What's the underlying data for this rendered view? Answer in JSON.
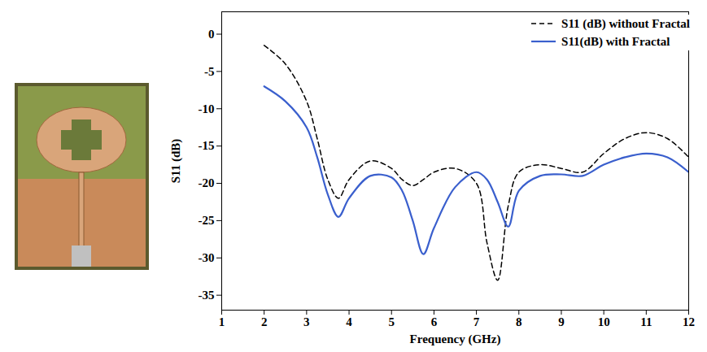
{
  "chart_data": {
    "type": "line",
    "xlabel": "Frequency (GHz)",
    "ylabel": "S11 (dB)",
    "x": [
      2,
      2.5,
      3,
      3.25,
      3.5,
      3.75,
      4,
      4.5,
      5,
      5.25,
      5.5,
      5.75,
      6,
      6.5,
      7,
      7.25,
      7.5,
      7.75,
      8,
      8.5,
      9,
      9.5,
      10,
      10.5,
      11,
      11.5,
      12
    ],
    "series": [
      {
        "name": "S11 (dB) without Fractal",
        "color": "#000000",
        "line_style": "dashed",
        "values": [
          -1.5,
          -4,
          -9,
          -14,
          -19.5,
          -22,
          -19.5,
          -17,
          -18,
          -19.5,
          -20.3,
          -19.5,
          -18.5,
          -18,
          -20,
          -28,
          -33,
          -23,
          -18.5,
          -17.5,
          -18,
          -18.5,
          -16,
          -14,
          -13.2,
          -14,
          -16.5
        ]
      },
      {
        "name": "S11(dB) with Fractal",
        "color": "#3a5fcd",
        "line_style": "solid",
        "values": [
          -7,
          -9,
          -12.5,
          -16.5,
          -21.5,
          -24.5,
          -22,
          -19,
          -19.2,
          -21,
          -25,
          -29.5,
          -26,
          -20.5,
          -18.5,
          -19.5,
          -22.5,
          -25.8,
          -21,
          -19,
          -18.8,
          -19,
          -17.5,
          -16.5,
          -16,
          -16.5,
          -18.5
        ]
      }
    ],
    "xlim": [
      1,
      12
    ],
    "xticks": [
      1,
      2,
      3,
      4,
      5,
      6,
      7,
      8,
      9,
      10,
      11,
      12
    ],
    "ylim": [
      -37,
      3
    ],
    "yticks": [
      -35,
      -30,
      -25,
      -20,
      -15,
      -10,
      -5,
      0
    ],
    "grid": false,
    "legend": "top-right"
  }
}
